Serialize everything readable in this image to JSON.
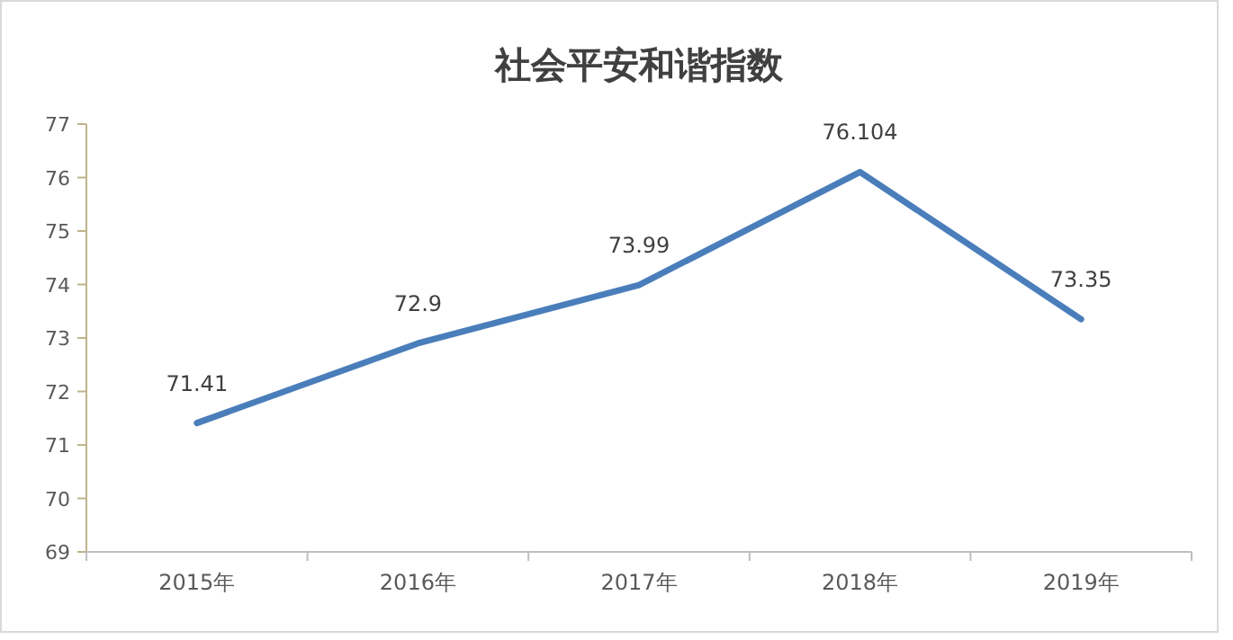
{
  "chart_data": {
    "type": "line",
    "title": "社会平安和谐指数",
    "categories": [
      "2015年",
      "2016年",
      "2017年",
      "2018年",
      "2019年"
    ],
    "series": [
      {
        "color": "#4a7ebb",
        "values": [
          71.41,
          72.9,
          73.99,
          76.104,
          73.35
        ]
      }
    ],
    "ylim": [
      69,
      77
    ],
    "yticks": [
      69,
      70,
      71,
      72,
      73,
      74,
      75,
      76,
      77
    ],
    "data_labels": true,
    "grid": false,
    "marker": "none",
    "line_style": "solid"
  }
}
